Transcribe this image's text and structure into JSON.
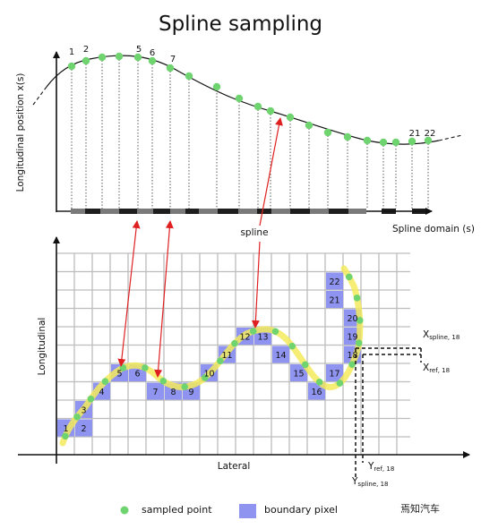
{
  "title": "Spline sampling",
  "top_plot": {
    "ylabel": "Longitudinal position x(s)",
    "xlabel": "Spline domain (s)",
    "spline_label": "spline",
    "point_labels": [
      "1",
      "2",
      "5",
      "6",
      "7",
      "21",
      "22"
    ]
  },
  "bottom_plot": {
    "ylabel": "Longitudinal",
    "xlabel": "Lateral",
    "pixel_labels": [
      "1",
      "2",
      "3",
      "4",
      "5",
      "6",
      "7",
      "8",
      "9",
      "10",
      "11",
      "12",
      "13",
      "14",
      "15",
      "16",
      "17",
      "18",
      "19",
      "20",
      "21",
      "22"
    ],
    "annotations": {
      "x_spline": "X",
      "x_spline_sub": "spline, 18",
      "x_ref": "X",
      "x_ref_sub": "ref, 18",
      "y_ref": "Y",
      "y_ref_sub": "ref, 18",
      "y_spline": "Y",
      "y_spline_sub": "spline, 18"
    }
  },
  "legend": {
    "sampled_point": "sampled point",
    "boundary_pixel": "boundary pixel"
  },
  "watermark": "焉知汽车",
  "colors": {
    "point": "#6fd46f",
    "pixel": "#8f94f0",
    "spline_highlight": "#f3ea5c",
    "arrow": "#e02020",
    "grid": "#bdbdbd"
  }
}
